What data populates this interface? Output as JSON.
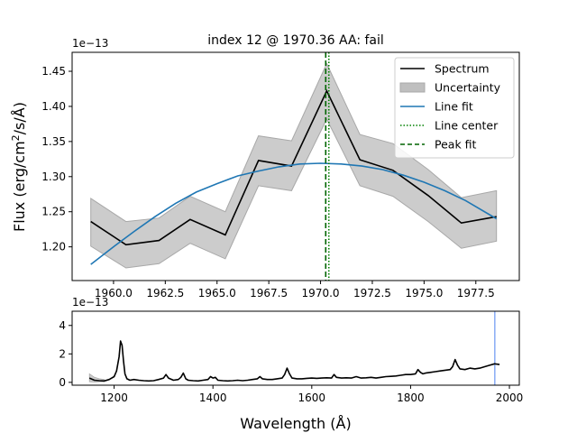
{
  "chart_data": [
    {
      "type": "line",
      "title": "index 12 @ 1970.36 AA: fail",
      "xlabel": "",
      "ylabel": "Flux (erg/cm²/s/Å)",
      "ylabel_parts": {
        "pre": "Flux (erg/cm",
        "sup": "2",
        "post": "/s/Å)"
      },
      "offset_text": "1e−13",
      "xlim": [
        1958.0,
        1979.6
      ],
      "ylim": [
        1.152,
        1.477
      ],
      "xticks": [
        1960.0,
        1962.5,
        1965.0,
        1967.5,
        1970.0,
        1972.5,
        1975.0,
        1977.5
      ],
      "xtick_labels": [
        "1960.0",
        "1962.5",
        "1965.0",
        "1967.5",
        "1970.0",
        "1972.5",
        "1975.0",
        "1977.5"
      ],
      "yticks": [
        1.2,
        1.25,
        1.3,
        1.35,
        1.4,
        1.45
      ],
      "ytick_labels": [
        "1.20",
        "1.25",
        "1.30",
        "1.35",
        "1.40",
        "1.45"
      ],
      "legend_position": "top-right",
      "legend": [
        "Spectrum",
        "Uncertainty",
        "Line fit",
        "Line center",
        "Peak fit"
      ],
      "colors": {
        "spectrum": "#000000",
        "uncertainty": "#bfbfbf",
        "fit": "#1f77b4",
        "center": "#008000",
        "peak": "#006400"
      },
      "series": [
        {
          "name": "Spectrum",
          "x": [
            1958.9,
            1960.6,
            1962.2,
            1963.7,
            1965.4,
            1967.0,
            1968.6,
            1970.3,
            1971.9,
            1973.5,
            1975.2,
            1976.8,
            1978.5
          ],
          "y": [
            1.236,
            1.203,
            1.209,
            1.239,
            1.217,
            1.323,
            1.315,
            1.422,
            1.324,
            1.309,
            1.273,
            1.234,
            1.243
          ]
        },
        {
          "name": "Uncertainty",
          "x": [
            1958.9,
            1960.6,
            1962.2,
            1963.7,
            1965.4,
            1967.0,
            1968.6,
            1970.3,
            1971.9,
            1973.5,
            1975.2,
            1976.8,
            1978.5
          ],
          "low": [
            1.201,
            1.17,
            1.176,
            1.205,
            1.183,
            1.287,
            1.28,
            1.382,
            1.287,
            1.272,
            1.236,
            1.198,
            1.208
          ],
          "high": [
            1.269,
            1.236,
            1.241,
            1.272,
            1.25,
            1.358,
            1.351,
            1.461,
            1.36,
            1.347,
            1.31,
            1.27,
            1.28
          ]
        },
        {
          "name": "Line fit",
          "x": [
            1958.9,
            1960.0,
            1961.0,
            1962.0,
            1963.0,
            1964.0,
            1965.0,
            1966.0,
            1967.0,
            1968.0,
            1969.0,
            1970.0,
            1971.0,
            1972.0,
            1973.0,
            1974.0,
            1975.0,
            1976.0,
            1977.0,
            1978.5
          ],
          "y": [
            1.175,
            1.2,
            1.222,
            1.243,
            1.262,
            1.278,
            1.29,
            1.301,
            1.308,
            1.314,
            1.318,
            1.319,
            1.318,
            1.315,
            1.31,
            1.302,
            1.292,
            1.28,
            1.266,
            1.24
          ]
        }
      ],
      "line_center": 1970.4,
      "peak_fit": 1970.25
    },
    {
      "type": "line",
      "title": "",
      "xlabel": "Wavelength (Å)",
      "ylabel": "",
      "offset_text": "1e−13",
      "xlim": [
        1115,
        2020
      ],
      "ylim": [
        -0.2,
        5.0
      ],
      "xticks": [
        1200,
        1400,
        1600,
        1800,
        2000
      ],
      "xtick_labels": [
        "1200",
        "1400",
        "1600",
        "1800",
        "2000"
      ],
      "yticks": [
        0,
        2,
        4
      ],
      "ytick_labels": [
        "0",
        "2",
        "4"
      ],
      "marker_line": 1970.36,
      "series": [
        {
          "name": "Spectrum",
          "x": [
            1150,
            1160,
            1170,
            1180,
            1190,
            1200,
            1205,
            1210,
            1213,
            1216,
            1219,
            1222,
            1226,
            1232,
            1240,
            1250,
            1260,
            1270,
            1280,
            1290,
            1300,
            1305,
            1310,
            1320,
            1330,
            1335,
            1340,
            1345,
            1350,
            1360,
            1370,
            1380,
            1390,
            1395,
            1400,
            1405,
            1410,
            1420,
            1430,
            1440,
            1450,
            1460,
            1470,
            1480,
            1490,
            1495,
            1500,
            1510,
            1520,
            1530,
            1540,
            1545,
            1550,
            1555,
            1560,
            1570,
            1580,
            1590,
            1600,
            1610,
            1620,
            1630,
            1640,
            1645,
            1650,
            1660,
            1670,
            1680,
            1690,
            1700,
            1710,
            1720,
            1730,
            1740,
            1750,
            1760,
            1770,
            1780,
            1790,
            1800,
            1810,
            1815,
            1820,
            1825,
            1830,
            1840,
            1850,
            1860,
            1870,
            1880,
            1885,
            1890,
            1895,
            1900,
            1910,
            1920,
            1930,
            1940,
            1950,
            1960,
            1970,
            1980
          ],
          "y": [
            0.3,
            0.15,
            0.12,
            0.1,
            0.2,
            0.4,
            0.8,
            1.8,
            2.9,
            2.6,
            1.5,
            0.6,
            0.25,
            0.15,
            0.2,
            0.15,
            0.12,
            0.1,
            0.12,
            0.2,
            0.3,
            0.55,
            0.3,
            0.15,
            0.2,
            0.35,
            0.65,
            0.25,
            0.15,
            0.12,
            0.1,
            0.15,
            0.2,
            0.4,
            0.3,
            0.35,
            0.15,
            0.12,
            0.1,
            0.12,
            0.15,
            0.12,
            0.15,
            0.2,
            0.25,
            0.4,
            0.25,
            0.2,
            0.2,
            0.25,
            0.3,
            0.55,
            1.0,
            0.6,
            0.3,
            0.25,
            0.25,
            0.28,
            0.3,
            0.28,
            0.3,
            0.32,
            0.3,
            0.55,
            0.35,
            0.3,
            0.32,
            0.3,
            0.4,
            0.3,
            0.32,
            0.35,
            0.3,
            0.35,
            0.4,
            0.42,
            0.45,
            0.5,
            0.55,
            0.55,
            0.6,
            0.9,
            0.7,
            0.6,
            0.65,
            0.7,
            0.75,
            0.8,
            0.85,
            0.9,
            1.1,
            1.6,
            1.2,
            0.95,
            0.9,
            1.0,
            0.95,
            1.0,
            1.1,
            1.2,
            1.3,
            1.25
          ]
        },
        {
          "name": "Uncertainty",
          "x": [
            1150,
            1160,
            1170,
            1180
          ],
          "low": [
            0.05,
            0.02,
            0.05,
            0.05
          ],
          "high": [
            0.6,
            0.35,
            0.25,
            0.2
          ]
        }
      ]
    }
  ]
}
